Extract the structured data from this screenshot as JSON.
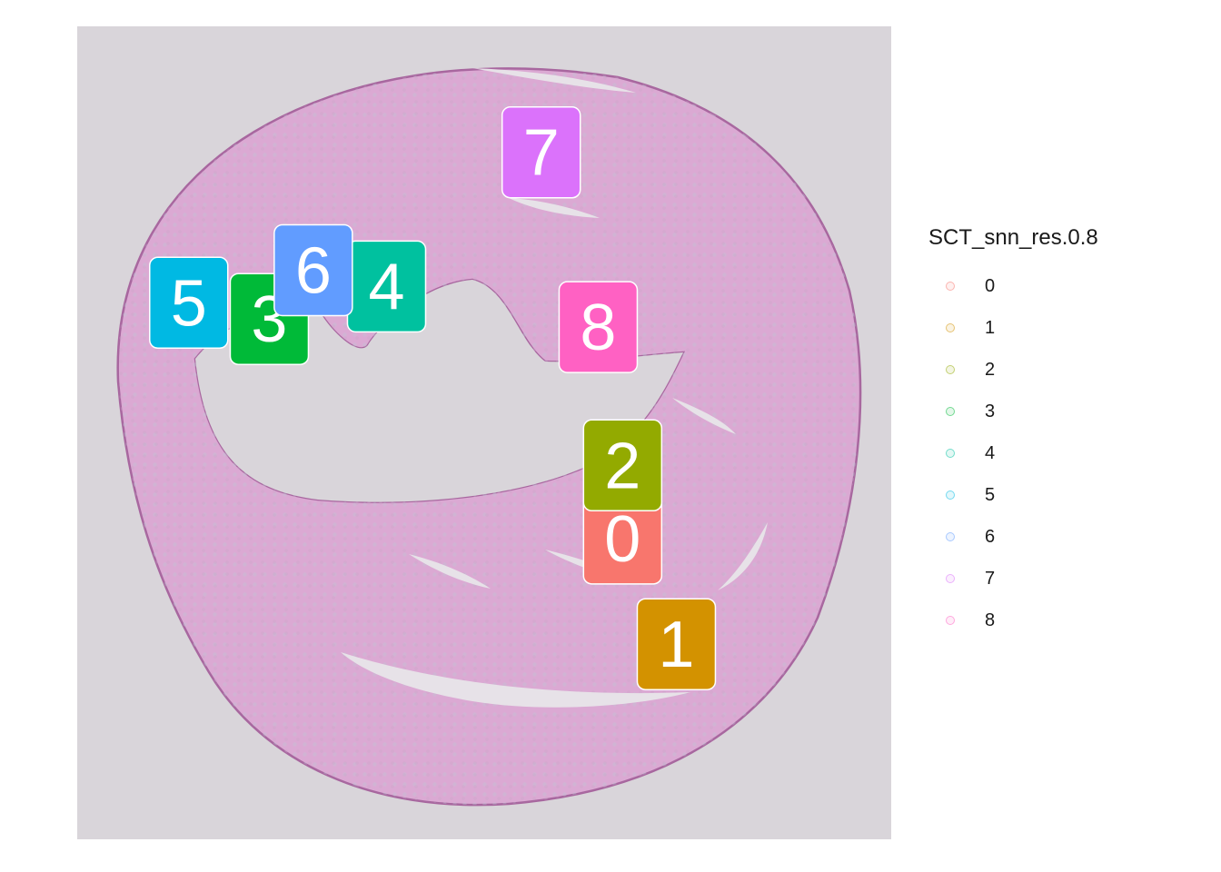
{
  "chart_data": {
    "type": "scatter",
    "subtype": "spatial-dimplot",
    "background": "H&E tissue section (heart cross-section)",
    "legend_title": "SCT_snn_res.0.8",
    "legend_position": "right",
    "clusters": [
      {
        "name": "0",
        "color": "#F8766D"
      },
      {
        "name": "1",
        "color": "#D39200"
      },
      {
        "name": "2",
        "color": "#93AA00"
      },
      {
        "name": "3",
        "color": "#00BA38"
      },
      {
        "name": "4",
        "color": "#00C19F"
      },
      {
        "name": "5",
        "color": "#00B9E3"
      },
      {
        "name": "6",
        "color": "#619CFF"
      },
      {
        "name": "7",
        "color": "#DB72FB"
      },
      {
        "name": "8",
        "color": "#FF61C3"
      }
    ],
    "cluster_label_positions": {
      "x_range": [
        0,
        100
      ],
      "y_range": [
        0,
        100
      ],
      "points": [
        {
          "cluster": "0",
          "x": 67.0,
          "y": 37.0
        },
        {
          "cluster": "1",
          "x": 73.6,
          "y": 24.0
        },
        {
          "cluster": "2",
          "x": 67.0,
          "y": 46.0
        },
        {
          "cluster": "3",
          "x": 23.6,
          "y": 64.0
        },
        {
          "cluster": "4",
          "x": 38.0,
          "y": 68.0
        },
        {
          "cluster": "5",
          "x": 13.7,
          "y": 66.0
        },
        {
          "cluster": "6",
          "x": 29.0,
          "y": 70.0
        },
        {
          "cluster": "7",
          "x": 57.0,
          "y": 84.5
        },
        {
          "cluster": "8",
          "x": 64.0,
          "y": 63.0
        }
      ]
    }
  }
}
